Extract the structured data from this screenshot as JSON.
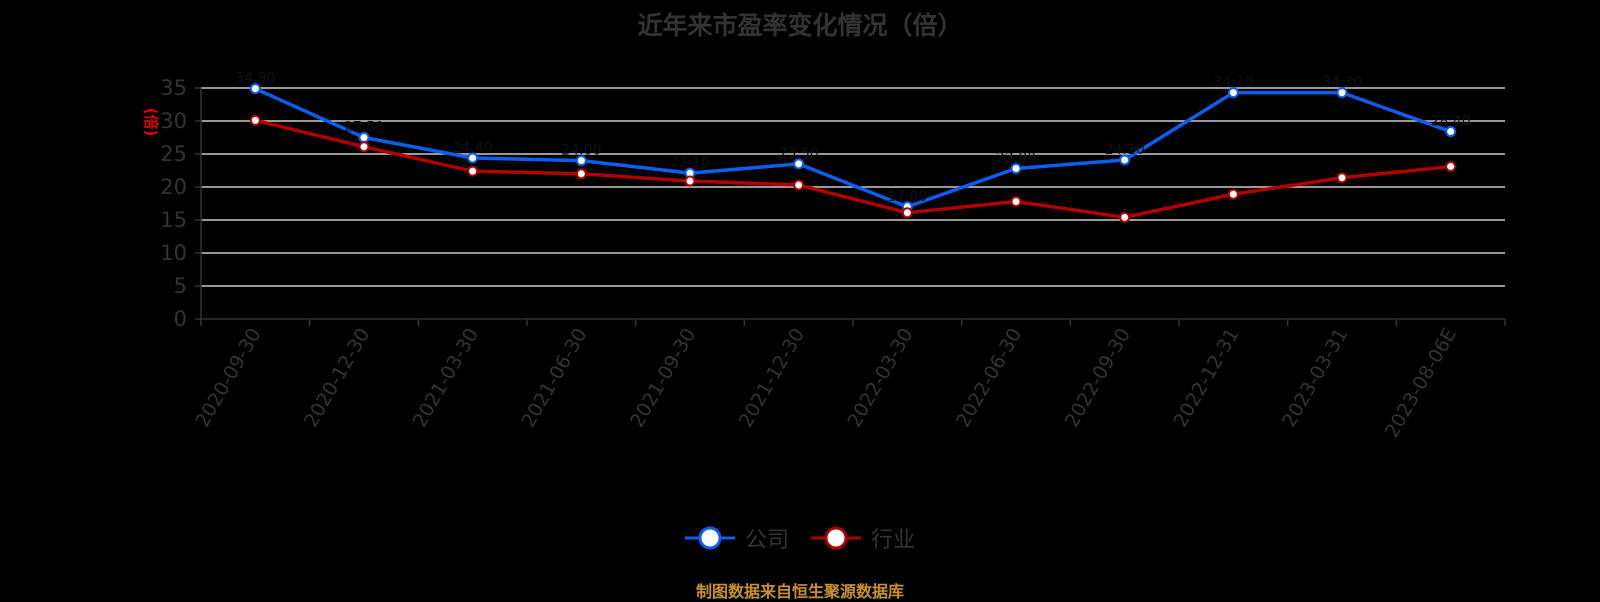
{
  "chart_data": {
    "type": "line",
    "title": "近年来市盈率变化情况（倍）",
    "xlabel": "",
    "ylabel": "(倍)",
    "ylim": [
      0,
      35
    ],
    "yticks": [
      0,
      5,
      10,
      15,
      20,
      25,
      30,
      35
    ],
    "grid": true,
    "legend_position": "bottom",
    "categories": [
      "2020-09-30",
      "2020-12-30",
      "2021-03-30",
      "2021-06-30",
      "2021-09-30",
      "2021-12-30",
      "2022-03-30",
      "2022-06-30",
      "2022-09-30",
      "2022-12-31",
      "2023-03-31",
      "2023-08-06E"
    ],
    "series": [
      {
        "name": "公司",
        "color": "#0a5ff0",
        "values": [
          34.9,
          27.5,
          24.4,
          24.0,
          22.1,
          23.5,
          17.0,
          22.8,
          24.1,
          34.3,
          34.3,
          28.4
        ]
      },
      {
        "name": "行业",
        "color": "#b00000",
        "values": [
          30.1,
          26.1,
          22.4,
          22.0,
          20.9,
          20.3,
          16.1,
          17.8,
          15.4,
          18.9,
          21.4,
          23.1
        ]
      }
    ]
  },
  "footer": {
    "source": "制图数据来自恒生聚源数据库"
  }
}
